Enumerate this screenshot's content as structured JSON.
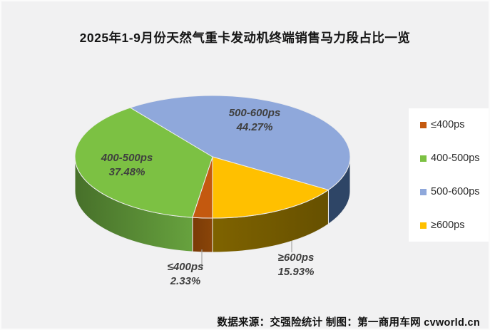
{
  "title": "2025年1-9月份天然气重卡发动机终端销售马力段占比一览",
  "source_credit": "数据来源：交强险统计 制图：第一商用车网 cvworld.cn",
  "colors": {
    "background": "#f1f1f2",
    "legend_background": "#ffffff",
    "label_text": "#3f3f3f",
    "leader_line": "#a6a6a6"
  },
  "chart_data": {
    "type": "pie",
    "style": "3d",
    "rotation_deg": 180,
    "direction": "clockwise",
    "legend_position": "right",
    "title": "2025年1-9月份天然气重卡发动机终端销售马力段占比一览",
    "slices": [
      {
        "label": "≤400ps",
        "value": 2.33,
        "pct_label": "2.33%",
        "color": "#c4590f",
        "side_from": "#7a3b07",
        "side_to": "#8a4509"
      },
      {
        "label": "400-500ps",
        "value": 37.48,
        "pct_label": "37.48%",
        "color": "#7cc143",
        "side_from": "#47702a",
        "side_to": "#67a23e"
      },
      {
        "label": "500-600ps",
        "value": 44.27,
        "pct_label": "44.27%",
        "color": "#8fa8db",
        "side_from": "#2e4566",
        "side_to": "#2e4566"
      },
      {
        "label": "≥600ps",
        "value": 15.93,
        "pct_label": "15.93%",
        "color": "#ffc000",
        "side_from": "#7f6300",
        "side_to": "#665000"
      }
    ]
  }
}
